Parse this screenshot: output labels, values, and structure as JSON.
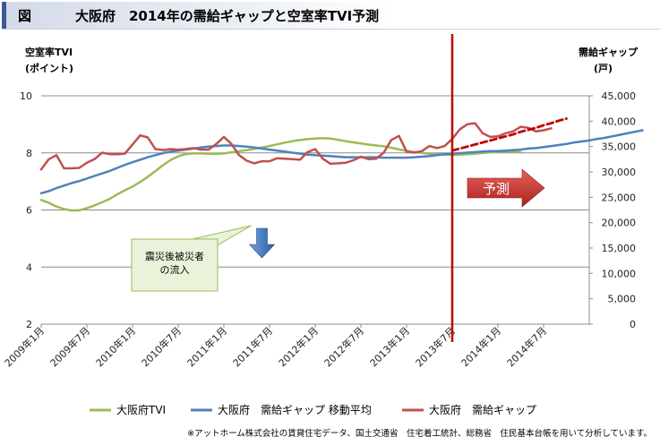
{
  "header": {
    "label": "図",
    "title": "大阪府　2014年の需給ギャップと空室率TVI予測"
  },
  "chart_data": {
    "type": "line",
    "title": "大阪府　2014年の需給ギャップと空室率TVI予測",
    "ylabel_left": [
      "空室率TVI",
      "(ポイント)"
    ],
    "ylabel_right": [
      "需給ギャップ",
      "(戸)"
    ],
    "y_left": {
      "min": 2,
      "max": 10,
      "ticks": [
        "2",
        "4",
        "6",
        "8",
        "10"
      ]
    },
    "y_right": {
      "min": 0,
      "max": 45000,
      "ticks": [
        "0",
        "5,000",
        "10,000",
        "15,000",
        "20,000",
        "25,000",
        "30,000",
        "35,000",
        "40,000",
        "45,000"
      ]
    },
    "x_ticks": [
      "2009年1月",
      "2009年7月",
      "2010年1月",
      "2010年7月",
      "2011年1月",
      "2011年7月",
      "2012年1月",
      "2012年7月",
      "2013年1月",
      "2013年7月",
      "2014年1月",
      "2014年7月"
    ],
    "x_start": "2009-01",
    "grid": "horizontal",
    "legend_position": "bottom",
    "colors": {
      "tvi": "#9bbb59",
      "moving_avg": "#4f81bd",
      "gap": "#c0504d",
      "forecast_marker": "#c00000",
      "callout_border": "#9bbb59",
      "callout_fill": "#eaf3da"
    },
    "series": [
      {
        "name": "大阪府TVI",
        "axis": "left",
        "values": [
          6.35,
          6.25,
          6.12,
          6.03,
          5.98,
          5.99,
          6.06,
          6.16,
          6.27,
          6.39,
          6.55,
          6.69,
          6.82,
          6.98,
          7.16,
          7.36,
          7.57,
          7.75,
          7.88,
          7.96,
          7.98,
          7.98,
          7.97,
          7.97,
          7.98,
          8.02,
          8.06,
          8.1,
          8.14,
          8.19,
          8.24,
          8.3,
          8.36,
          8.41,
          8.45,
          8.48,
          8.5,
          8.52,
          8.5,
          8.46,
          8.41,
          8.37,
          8.33,
          8.29,
          8.26,
          8.23,
          8.18,
          8.12,
          8.07,
          8.03,
          8.0,
          7.97,
          7.95,
          7.94,
          7.93,
          7.94,
          7.95,
          7.97,
          8.0,
          8.02,
          8.04,
          8.05,
          8.04,
          8.02
        ]
      },
      {
        "name": "大阪府　需給ギャップ 移動平均",
        "axis": "right",
        "values": [
          25800,
          26200,
          26800,
          27300,
          27800,
          28200,
          28700,
          29200,
          29700,
          30200,
          30800,
          31400,
          31900,
          32400,
          32900,
          33300,
          33700,
          34000,
          34200,
          34400,
          34600,
          34800,
          35000,
          35100,
          35200,
          35200,
          35100,
          35000,
          34800,
          34600,
          34400,
          34200,
          34000,
          33800,
          33600,
          33400,
          33300,
          33200,
          33100,
          33000,
          32900,
          32900,
          32900,
          32900,
          32900,
          32800,
          32800,
          32800,
          32800,
          32900,
          33000,
          33100,
          33300,
          33500,
          33600,
          33700,
          33800,
          33900,
          34000,
          34100,
          34100,
          34200,
          34300,
          34400,
          34600,
          34700,
          34900,
          35100,
          35300,
          35500,
          35800,
          36000,
          36200,
          36500,
          36700,
          37000,
          37300,
          37600,
          37900,
          38200
        ]
      },
      {
        "name": "大阪府　需給ギャップ",
        "axis": "right",
        "values": [
          30500,
          32500,
          33300,
          30700,
          30700,
          30800,
          31800,
          32500,
          33800,
          33500,
          33500,
          33600,
          35400,
          37200,
          36800,
          34500,
          34300,
          34500,
          34400,
          34500,
          34700,
          34400,
          34400,
          35500,
          36900,
          35500,
          33300,
          32200,
          31700,
          32100,
          32100,
          32700,
          32600,
          32500,
          32400,
          33900,
          34500,
          32600,
          31600,
          31700,
          31800,
          32300,
          33000,
          32500,
          32600,
          33800,
          36300,
          37100,
          34000,
          33800,
          34100,
          35100,
          34700,
          35100,
          36500,
          38400,
          39400,
          39600,
          37600,
          36900,
          37000,
          37600,
          38000,
          38900,
          38700,
          38000,
          38200,
          38600
        ]
      },
      {
        "name": "forecast (dashed)",
        "axis": "right",
        "values": [
          34200,
          34600,
          35000,
          35400,
          35800,
          36200,
          36600,
          37000,
          37400,
          37900,
          38300,
          38700,
          39200,
          39600,
          40100,
          40500
        ]
      }
    ],
    "forecast": {
      "start": "2013-07",
      "label": "予測"
    },
    "annotation": {
      "text": [
        "震災後被災者",
        "の流入"
      ],
      "arrow_at": "2011-06"
    }
  },
  "legend": [
    {
      "label": "大阪府TVI",
      "color": "#9bbb59"
    },
    {
      "label": "大阪府　需給ギャップ 移動平均",
      "color": "#4f81bd"
    },
    {
      "label": "大阪府　需給ギャップ",
      "color": "#c0504d"
    }
  ],
  "footnote": "※アットホーム株式会社の賃貸住宅データ、国土交通省　住宅着工統計、総務省　住民基本台帳を用いて分析しています。"
}
